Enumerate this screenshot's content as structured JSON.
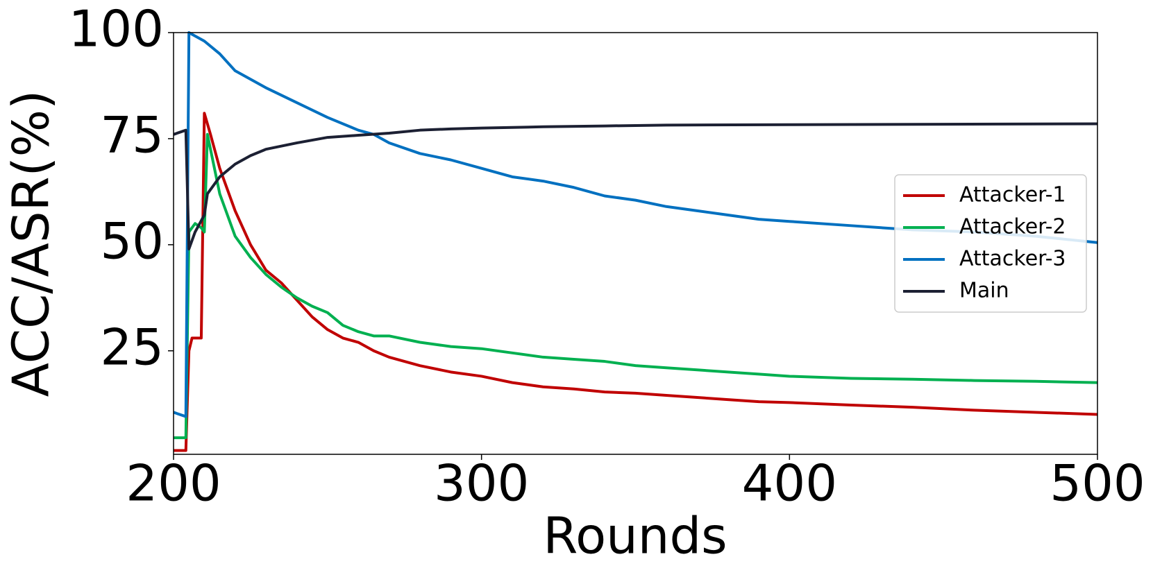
{
  "chart_data": {
    "type": "line",
    "xlabel": "Rounds",
    "ylabel": "ACC/ASR(%)",
    "xlim": [
      200,
      500
    ],
    "ylim": [
      0.6,
      100
    ],
    "xticks": [
      200,
      300,
      400,
      500
    ],
    "yticks": [
      25,
      50,
      75,
      100
    ],
    "legend": "center right",
    "series": [
      {
        "name": "Attacker-1",
        "color": "#c00000",
        "x": [
          200,
          204,
          205,
          206,
          209,
          210,
          212,
          215,
          220,
          225,
          230,
          235,
          240,
          245,
          250,
          255,
          260,
          265,
          270,
          280,
          290,
          300,
          310,
          320,
          330,
          340,
          350,
          360,
          370,
          380,
          390,
          400,
          420,
          440,
          460,
          480,
          500
        ],
        "values": [
          1.5,
          1.5,
          25,
          28,
          28,
          81,
          76,
          68,
          58,
          50,
          44,
          41,
          37,
          33,
          30,
          28,
          27,
          25,
          23.5,
          21.5,
          20,
          19,
          17.5,
          16.5,
          16,
          15.3,
          15,
          14.5,
          14,
          13.5,
          13,
          12.8,
          12.2,
          11.7,
          11,
          10.5,
          10
        ]
      },
      {
        "name": "Attacker-2",
        "color": "#00b050",
        "x": [
          200,
          204,
          205,
          207,
          209,
          210,
          211,
          215,
          220,
          225,
          230,
          235,
          240,
          245,
          250,
          255,
          260,
          265,
          270,
          280,
          290,
          300,
          310,
          320,
          330,
          340,
          350,
          360,
          370,
          380,
          390,
          400,
          420,
          440,
          460,
          480,
          500
        ],
        "values": [
          4.5,
          4.5,
          53,
          55,
          54,
          53,
          76,
          62,
          52,
          47,
          43,
          40,
          37.5,
          35.5,
          34,
          31,
          29.5,
          28.5,
          28.5,
          27,
          26,
          25.5,
          24.5,
          23.5,
          23,
          22.5,
          21.5,
          21,
          20.5,
          20,
          19.5,
          19,
          18.5,
          18.3,
          18,
          17.8,
          17.5
        ]
      },
      {
        "name": "Attacker-3",
        "color": "#0070c0",
        "x": [
          200,
          204,
          205,
          210,
          215,
          220,
          225,
          230,
          240,
          250,
          260,
          265,
          270,
          280,
          290,
          300,
          310,
          320,
          330,
          340,
          350,
          360,
          370,
          380,
          390,
          400,
          420,
          440,
          460,
          480,
          500
        ],
        "values": [
          10.5,
          9.5,
          100,
          98,
          95,
          91,
          89,
          87,
          83.5,
          80,
          77,
          76,
          74,
          71.5,
          70,
          68,
          66,
          65,
          63.5,
          61.5,
          60.5,
          59,
          58,
          57,
          56,
          55.5,
          54.5,
          53.5,
          53,
          52,
          50.5
        ]
      },
      {
        "name": "Main",
        "color": "#1c2033",
        "x": [
          200,
          204,
          205,
          207,
          210,
          211,
          215,
          220,
          225,
          230,
          240,
          250,
          260,
          270,
          280,
          290,
          300,
          320,
          340,
          360,
          400,
          450,
          500
        ],
        "values": [
          76,
          77,
          49,
          53,
          57,
          62,
          66,
          69,
          71,
          72.5,
          74,
          75.3,
          75.8,
          76.3,
          77,
          77.3,
          77.5,
          77.8,
          78,
          78.2,
          78.3,
          78.4,
          78.5
        ]
      }
    ]
  }
}
